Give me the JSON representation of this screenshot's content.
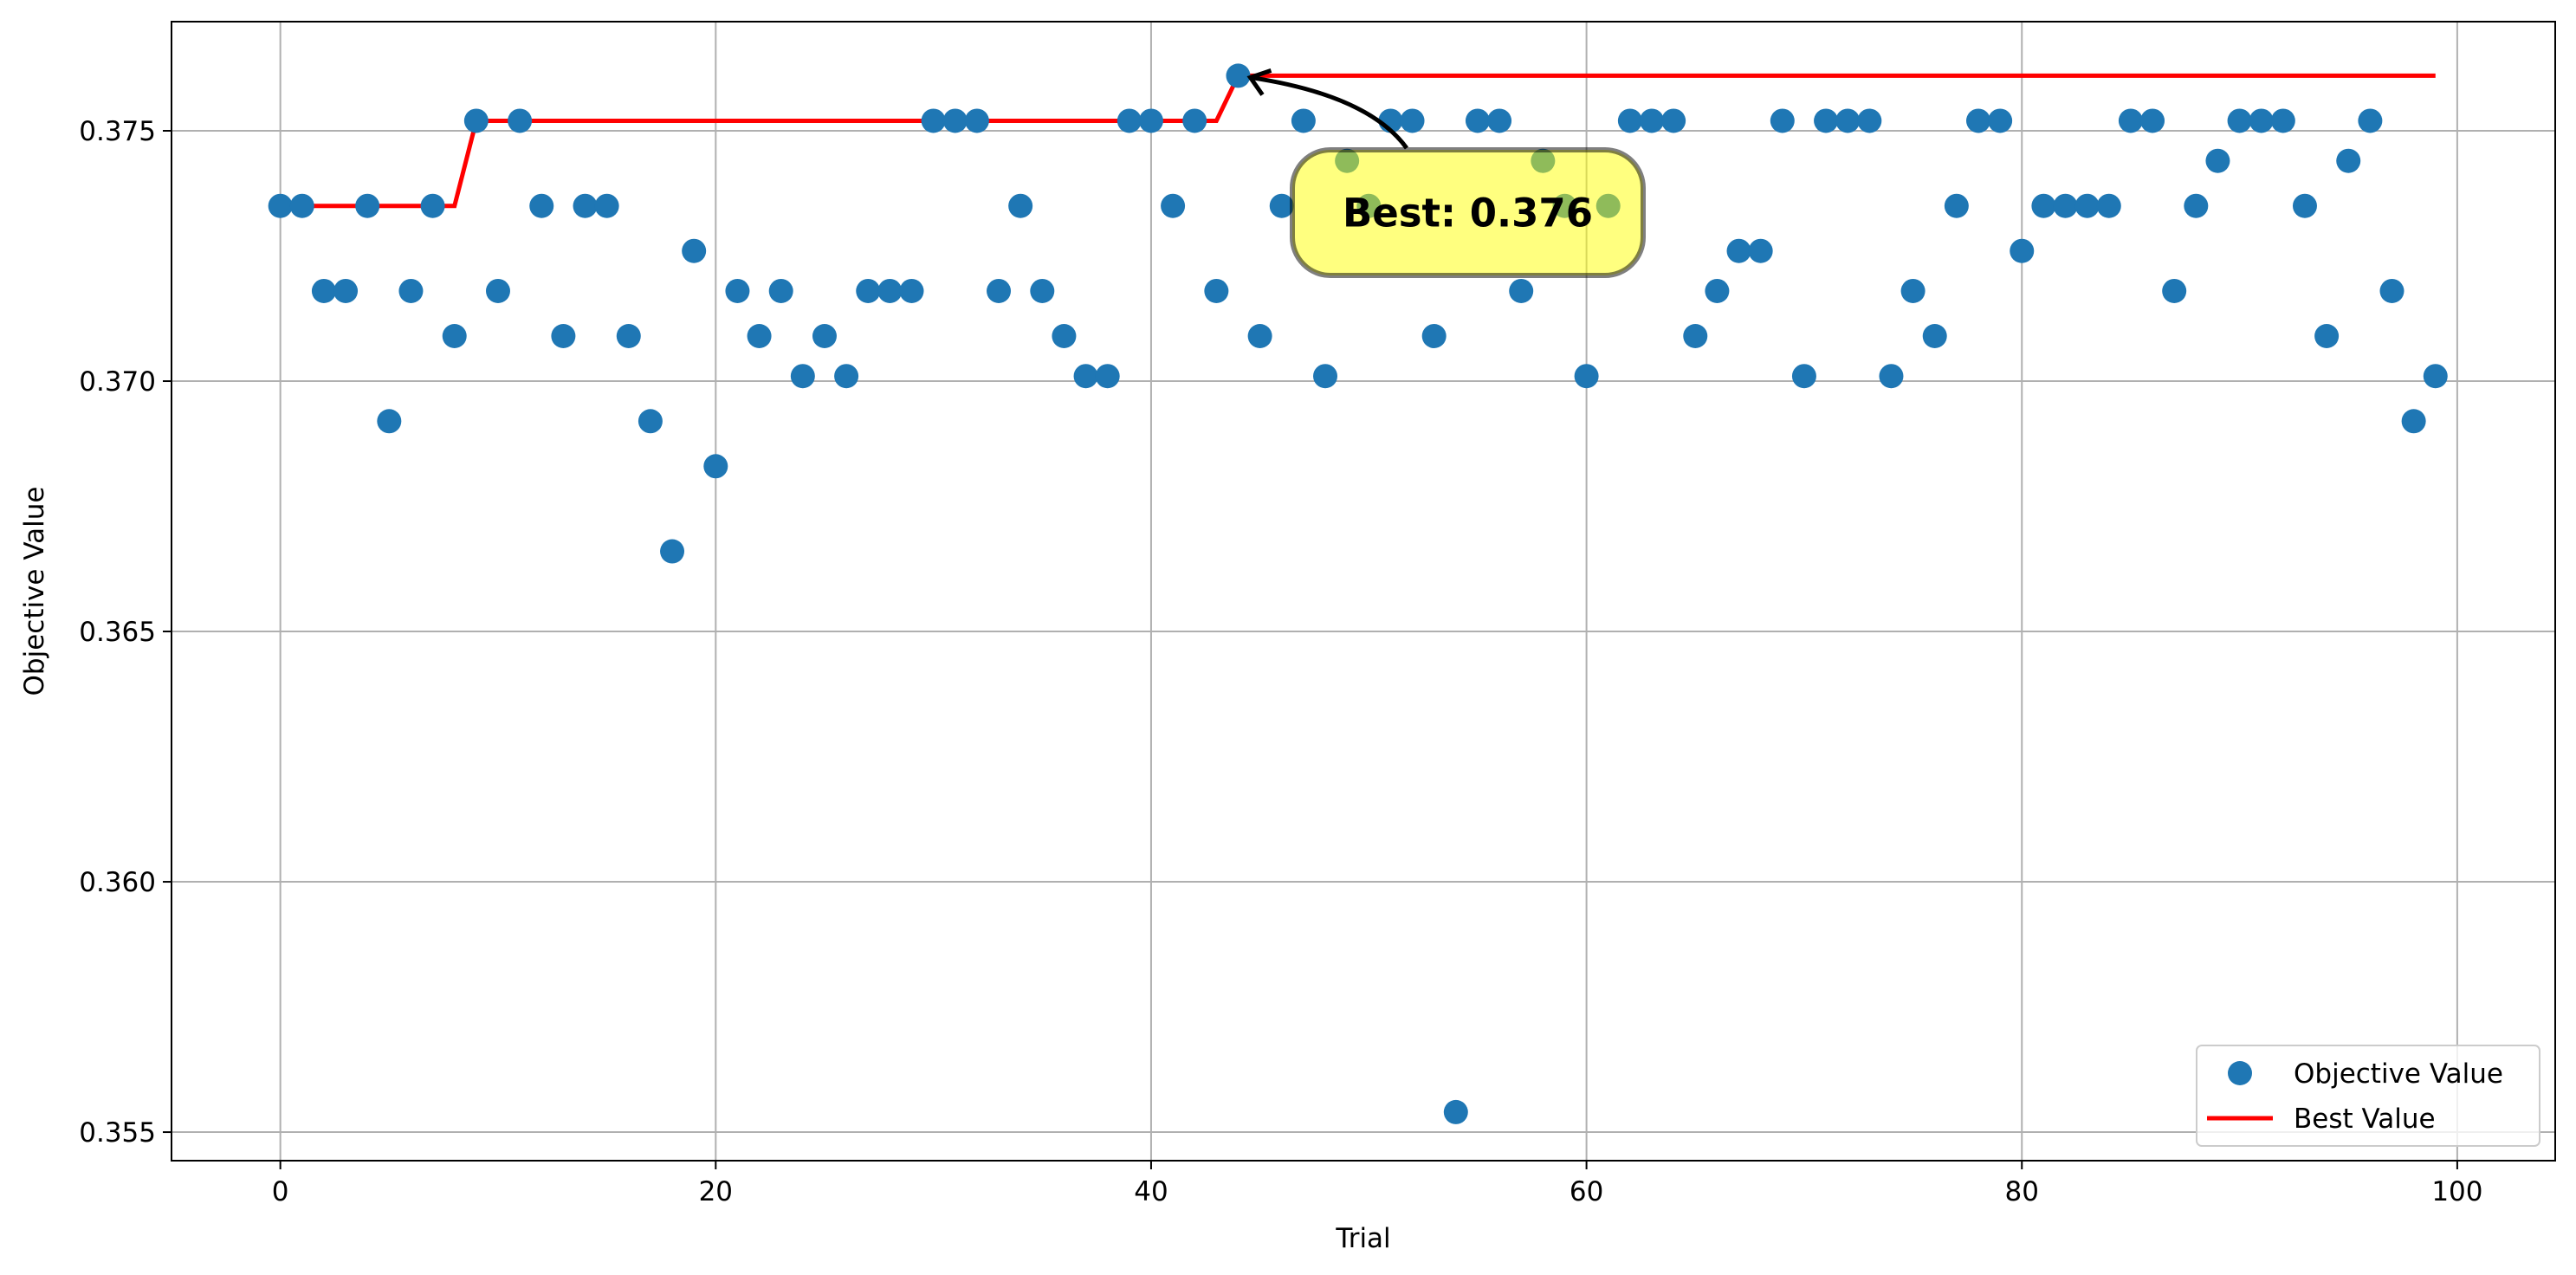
{
  "chart_data": {
    "type": "scatter",
    "xlabel": "Trial",
    "ylabel": "Objective Value",
    "xlim": [
      -5,
      104.5
    ],
    "ylim": [
      0.35443,
      0.37718
    ],
    "xticks": [
      0,
      20,
      40,
      60,
      80,
      100
    ],
    "xtick_labels": [
      "0",
      "20",
      "40",
      "60",
      "80",
      "100"
    ],
    "yticks": [
      0.355,
      0.36,
      0.365,
      0.37,
      0.375
    ],
    "ytick_labels": [
      "0.355",
      "0.360",
      "0.365",
      "0.370",
      "0.375"
    ],
    "grid": true,
    "legend_position": "bottom-right",
    "series": [
      {
        "name": "Objective Value",
        "kind": "markers",
        "color": "#1f77b4",
        "x": [
          0,
          1,
          2,
          3,
          4,
          5,
          6,
          7,
          8,
          9,
          10,
          11,
          12,
          13,
          14,
          15,
          16,
          17,
          18,
          19,
          20,
          21,
          22,
          23,
          24,
          25,
          26,
          27,
          28,
          29,
          30,
          31,
          32,
          33,
          34,
          35,
          36,
          37,
          38,
          39,
          40,
          41,
          42,
          43,
          44,
          45,
          46,
          47,
          48,
          49,
          50,
          51,
          52,
          53,
          54,
          55,
          56,
          57,
          58,
          59,
          60,
          61,
          62,
          63,
          64,
          65,
          66,
          67,
          68,
          69,
          70,
          71,
          72,
          73,
          74,
          75,
          76,
          77,
          78,
          79,
          80,
          81,
          82,
          83,
          84,
          85,
          86,
          87,
          88,
          89,
          90,
          91,
          92,
          93,
          94,
          95,
          96,
          97,
          98,
          99
        ],
        "y": [
          0.3735,
          0.3735,
          0.3718,
          0.3718,
          0.3735,
          0.3692,
          0.3718,
          0.3735,
          0.3709,
          0.3752,
          0.3718,
          0.3752,
          0.3735,
          0.3709,
          0.3735,
          0.3735,
          0.3709,
          0.3692,
          0.3666,
          0.3726,
          0.3683,
          0.3718,
          0.3709,
          0.3718,
          0.3701,
          0.3709,
          0.3701,
          0.3718,
          0.3718,
          0.3718,
          0.3752,
          0.3752,
          0.3752,
          0.3718,
          0.3735,
          0.3718,
          0.3709,
          0.3701,
          0.3701,
          0.3752,
          0.3752,
          0.3735,
          0.3752,
          0.3718,
          0.3761,
          0.3709,
          0.3735,
          0.3752,
          0.3701,
          0.3744,
          0.3735,
          0.3752,
          0.3752,
          0.3709,
          0.3554,
          0.3752,
          0.3752,
          0.3718,
          0.3744,
          0.3735,
          0.3701,
          0.3735,
          0.3752,
          0.3752,
          0.3752,
          0.3709,
          0.3718,
          0.3726,
          0.3726,
          0.3752,
          0.3701,
          0.3752,
          0.3752,
          0.3752,
          0.3701,
          0.3718,
          0.3709,
          0.3735,
          0.3752,
          0.3752,
          0.3726,
          0.3735,
          0.3735,
          0.3735,
          0.3735,
          0.3752,
          0.3752,
          0.3718,
          0.3735,
          0.3744,
          0.3752,
          0.3752,
          0.3752,
          0.3735,
          0.3709,
          0.3744,
          0.3752,
          0.3718,
          0.3692,
          0.3701
        ]
      },
      {
        "name": "Best Value",
        "kind": "line",
        "color": "#ff0000",
        "x": [
          0,
          8,
          9,
          43,
          44,
          99
        ],
        "y": [
          0.3735,
          0.3735,
          0.3752,
          0.3752,
          0.3761,
          0.3761
        ]
      }
    ],
    "annotation": {
      "text": "Best: 0.376",
      "point": [
        44,
        0.3761
      ],
      "box_color": "#ffff00"
    }
  }
}
